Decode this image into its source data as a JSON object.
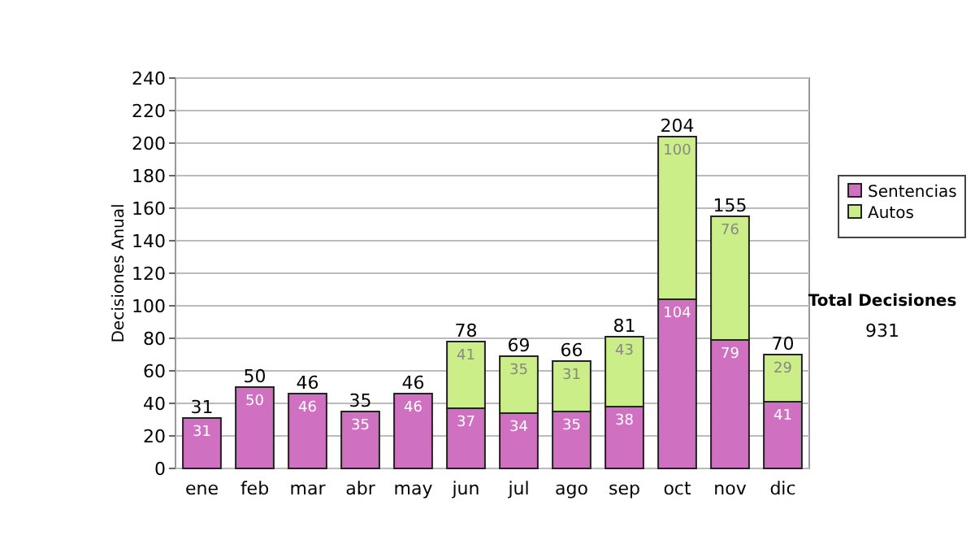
{
  "chart_data": {
    "type": "bar",
    "stacked": true,
    "ylabel": "Decisiones Anual",
    "categories": [
      "ene",
      "feb",
      "mar",
      "abr",
      "may",
      "jun",
      "jul",
      "ago",
      "sep",
      "oct",
      "nov",
      "dic"
    ],
    "series": [
      {
        "name": "Sentencias",
        "color": "#d070c0",
        "values": [
          31,
          50,
          46,
          35,
          46,
          37,
          34,
          35,
          38,
          104,
          79,
          41
        ]
      },
      {
        "name": "Autos",
        "color": "#ccee88",
        "values": [
          null,
          null,
          null,
          null,
          null,
          41,
          35,
          31,
          43,
          100,
          76,
          29
        ]
      }
    ],
    "data_labels": true,
    "totals": [
      "31",
      "50",
      "46",
      "35",
      "46",
      "78",
      "69",
      "66",
      "81",
      "204",
      "155",
      "70"
    ],
    "ylim": [
      0,
      240
    ],
    "yticks": [
      0,
      20,
      40,
      60,
      80,
      100,
      120,
      140,
      160,
      180,
      200,
      220,
      240
    ],
    "grid": "y",
    "legend": "right",
    "annotations": [
      "Total Decisiones",
      "931"
    ]
  }
}
